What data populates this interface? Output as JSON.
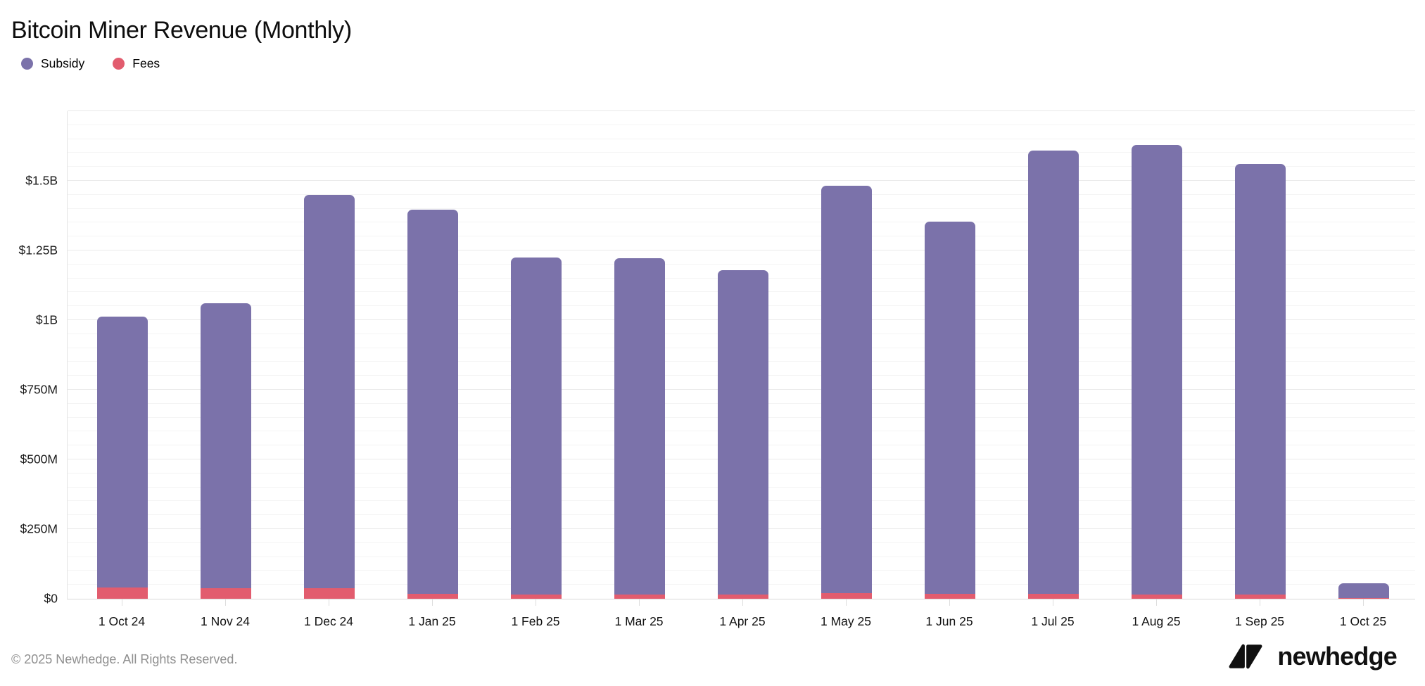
{
  "header": {
    "title": "Bitcoin Miner Revenue (Monthly)"
  },
  "legend": [
    {
      "label": "Subsidy",
      "color": "#7b72aa"
    },
    {
      "label": "Fees",
      "color": "#e25c6e"
    }
  ],
  "chart_data": {
    "type": "bar",
    "stacked": true,
    "title": "Bitcoin Miner Revenue (Monthly)",
    "value_unit": "USD millions",
    "categories": [
      "1 Oct 24",
      "1 Nov 24",
      "1 Dec 24",
      "1 Jan 25",
      "1 Feb 25",
      "1 Mar 25",
      "1 Apr 25",
      "1 May 25",
      "1 Jun 25",
      "1 Jul 25",
      "1 Aug 25",
      "1 Sep 25",
      "1 Oct 25"
    ],
    "series": [
      {
        "name": "Subsidy",
        "color": "#7b72aa",
        "values": [
          972,
          1023,
          1411,
          1378,
          1210,
          1208,
          1164,
          1462,
          1337,
          1591,
          1615,
          1547,
          54
        ]
      },
      {
        "name": "Fees",
        "color": "#e25c6e",
        "values": [
          40,
          38,
          38,
          18,
          15,
          14,
          15,
          20,
          17,
          17,
          14,
          14,
          2
        ]
      }
    ],
    "stack_bottom_series": "Fees",
    "totals": [
      1012,
      1061,
      1449,
      1396,
      1225,
      1222,
      1179,
      1482,
      1354,
      1608,
      1629,
      1561,
      56
    ],
    "ylim": [
      0,
      1750
    ],
    "y_tick_values": [
      0,
      250,
      500,
      750,
      1000,
      1250,
      1500
    ],
    "y_tick_labels": [
      "$0",
      "$250M",
      "$500M",
      "$750M",
      "$1B",
      "$1.25B",
      "$1.5B"
    ],
    "minor_gridline_step_millions": 50,
    "grid": true,
    "legend_position": "top-left",
    "xlabel": "",
    "ylabel": ""
  },
  "footer": {
    "copyright": "© 2025 Newhedge. All Rights Reserved.",
    "brand": "newhedge"
  }
}
